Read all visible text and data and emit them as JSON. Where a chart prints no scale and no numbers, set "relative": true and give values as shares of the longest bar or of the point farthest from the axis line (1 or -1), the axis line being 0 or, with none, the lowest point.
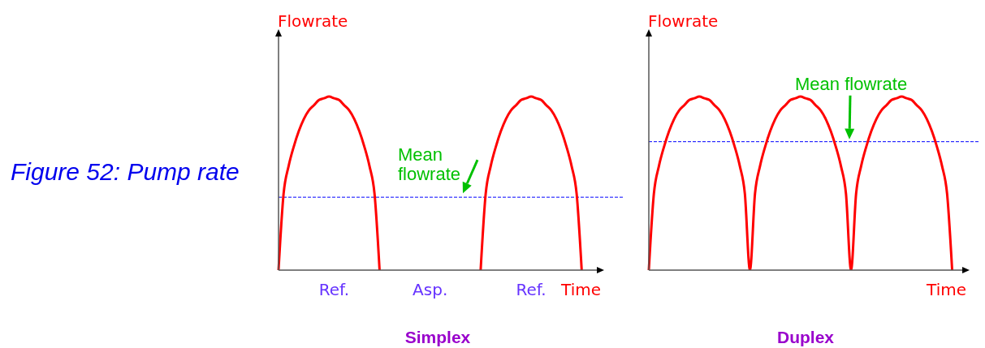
{
  "chart_data": [
    {
      "type": "line",
      "title": "Simplex",
      "xlabel": "Time",
      "ylabel": "Flowrate",
      "annotations": [
        "Figure 52: Pump rate"
      ],
      "relative": true,
      "tick_labels": "x",
      "color": "#ff0000",
      "categories": [
        null,
        null,
        null,
        null,
        null,
        null,
        null,
        null,
        null,
        null,
        null,
        "Ref.",
        null,
        null,
        null,
        null,
        null,
        null,
        null,
        null,
        null,
        null,
        null,
        null,
        null,
        null,
        null,
        null,
        null,
        null,
        "Asp.",
        null,
        null,
        null,
        null,
        null,
        null,
        null,
        null,
        null,
        null,
        null,
        null,
        null,
        null,
        null,
        null,
        null,
        null,
        null,
        "Ref.",
        null,
        null,
        null,
        null,
        null,
        null,
        null,
        null,
        null,
        null,
        null,
        null,
        null
      ],
      "values": [
        0,
        0.44,
        0.6,
        0.71,
        0.8,
        0.87,
        0.92,
        0.95,
        0.98,
        0.99,
        1,
        0.99,
        0.98,
        0.95,
        0.92,
        0.87,
        0.8,
        0.71,
        0.6,
        0.44,
        0,
        null,
        null,
        null,
        null,
        null,
        null,
        null,
        null,
        null,
        null,
        null,
        null,
        null,
        null,
        null,
        null,
        null,
        null,
        null,
        0,
        0.44,
        0.6,
        0.71,
        0.8,
        0.87,
        0.92,
        0.95,
        0.98,
        0.99,
        1,
        0.99,
        0.98,
        0.95,
        0.92,
        0.87,
        0.8,
        0.71,
        0.6,
        0.44,
        0,
        null,
        null,
        null
      ],
      "ref_lines": [
        {
          "axis": "y",
          "value": 0.42,
          "label": "Mean flowrate",
          "color": "#0000ff",
          "line_style": "dashed"
        }
      ]
    },
    {
      "type": "line",
      "title": "Duplex",
      "xlabel": "Time",
      "ylabel": "Flowrate",
      "relative": true,
      "tick_labels": false,
      "color": "#ff0000",
      "categories": [
        null,
        null,
        null,
        null,
        null,
        null,
        null,
        null,
        null,
        null,
        null,
        null,
        null,
        null,
        null,
        null,
        null,
        null,
        null,
        null,
        null,
        null,
        null,
        null,
        null,
        null,
        null,
        null,
        null,
        null,
        null,
        null,
        null,
        null,
        null,
        null,
        null,
        null,
        null,
        null,
        null,
        null,
        null,
        null,
        null,
        null,
        null,
        null,
        null,
        null,
        null,
        null,
        null,
        null,
        null,
        null,
        null,
        null,
        null,
        null,
        null,
        null,
        null
      ],
      "values": [
        0,
        0.44,
        0.6,
        0.71,
        0.8,
        0.87,
        0.92,
        0.95,
        0.98,
        0.99,
        1,
        0.99,
        0.98,
        0.95,
        0.92,
        0.87,
        0.8,
        0.71,
        0.6,
        0.44,
        0,
        0.44,
        0.6,
        0.71,
        0.8,
        0.87,
        0.92,
        0.95,
        0.98,
        0.99,
        1,
        0.99,
        0.98,
        0.95,
        0.92,
        0.87,
        0.8,
        0.71,
        0.6,
        0.44,
        0,
        0.44,
        0.6,
        0.71,
        0.8,
        0.87,
        0.92,
        0.95,
        0.98,
        0.99,
        1,
        0.99,
        0.98,
        0.95,
        0.92,
        0.87,
        0.8,
        0.71,
        0.6,
        0.44,
        0,
        null,
        null
      ],
      "ref_lines": [
        {
          "axis": "y",
          "value": 0.74,
          "label": "Mean flowrate",
          "color": "#0000ff",
          "line_style": "dashed"
        }
      ]
    }
  ]
}
